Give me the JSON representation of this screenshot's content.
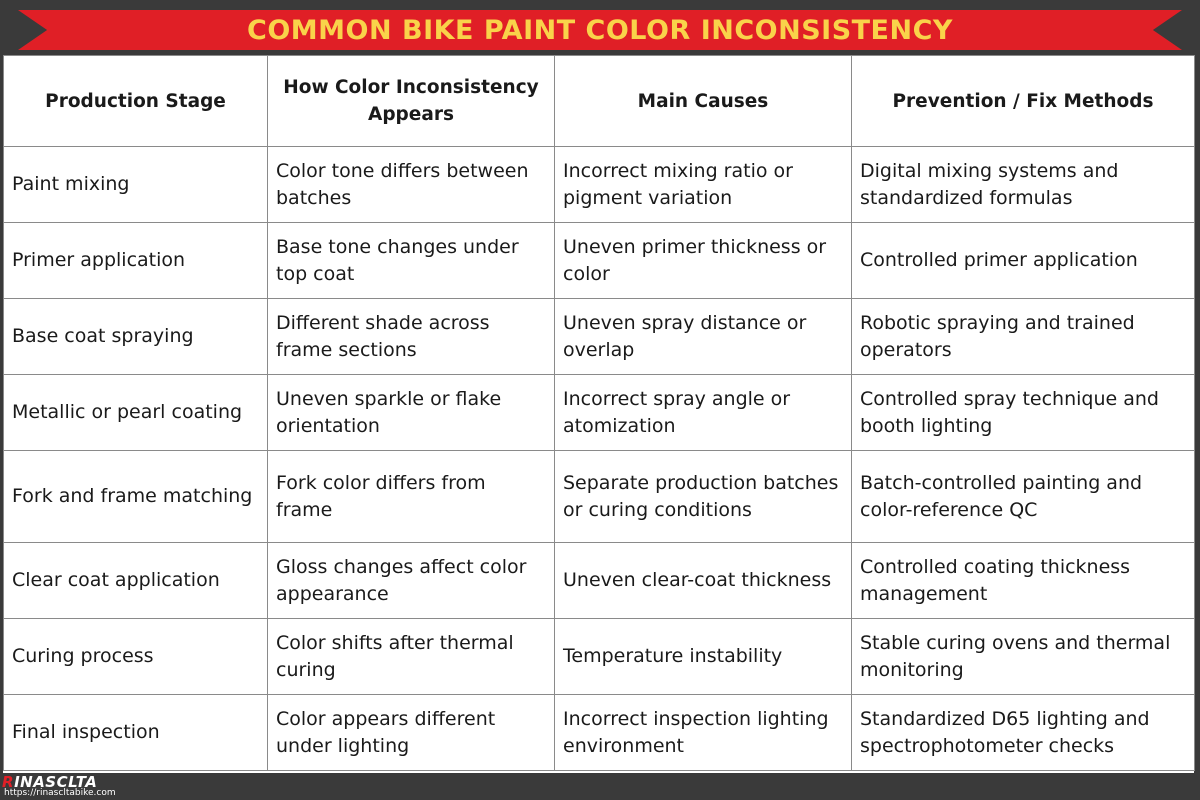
{
  "title": "COMMON BIKE PAINT COLOR INCONSISTENCY",
  "table": {
    "headers": [
      "Production Stage",
      "How Color Inconsistency Appears",
      "Main Causes",
      "Prevention / Fix Methods"
    ],
    "rows": [
      [
        "Paint mixing",
        "Color tone differs between batches",
        "Incorrect mixing ratio or pigment variation",
        "Digital mixing systems and standardized formulas"
      ],
      [
        "Primer application",
        "Base tone changes under top coat",
        "Uneven primer thickness or color",
        "Controlled primer application"
      ],
      [
        "Base coat spraying",
        "Different shade across frame sections",
        "Uneven spray distance or overlap",
        "Robotic spraying and trained operators"
      ],
      [
        "Metallic or pearl coating",
        "Uneven sparkle or flake orientation",
        "Incorrect spray angle or atomization",
        "Controlled spray technique and booth lighting"
      ],
      [
        "Fork and frame matching",
        "Fork color differs from frame",
        "Separate production batches or curing conditions",
        "Batch-controlled painting and color-reference QC"
      ],
      [
        "Clear coat application",
        "Gloss changes affect color appearance",
        "Uneven clear-coat thickness",
        "Controlled coating thickness management"
      ],
      [
        "Curing process",
        "Color shifts after thermal curing",
        "Temperature instability",
        "Stable curing ovens and thermal monitoring"
      ],
      [
        "Final inspection",
        "Color appears different under lighting",
        "Incorrect inspection lighting environment",
        "Standardized D65 lighting and spectrophotometer checks"
      ]
    ]
  },
  "footer": {
    "logo_accent": "R",
    "logo_rest": "INASCLTA",
    "url": "https://rinascltabike.com"
  },
  "colors": {
    "banner": "#e01f26",
    "title_text": "#f9d34a",
    "background": "#3a3a3a"
  }
}
